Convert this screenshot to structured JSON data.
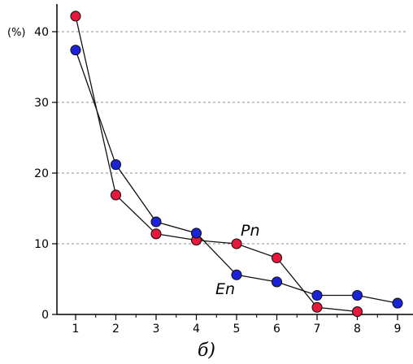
{
  "chart_data": {
    "type": "line",
    "x": [
      1,
      2,
      3,
      4,
      5,
      6,
      7,
      8,
      9
    ],
    "xticks": [
      "1",
      "2",
      "3",
      "4",
      "5",
      "6",
      "7",
      "8",
      "9"
    ],
    "ylim": [
      0,
      42
    ],
    "yticks": [
      0,
      10,
      20,
      30,
      40
    ],
    "y_unit_label": "(%)",
    "grid": "horizontal-dashed",
    "series": [
      {
        "name": "Pn",
        "color": "#e8173c",
        "x": [
          1,
          2,
          3,
          4,
          5,
          6,
          7,
          8
        ],
        "values": [
          42.2,
          16.9,
          11.4,
          10.5,
          10.0,
          8.0,
          1.0,
          0.4
        ]
      },
      {
        "name": "En",
        "color": "#1a24d6",
        "x": [
          1,
          2,
          3,
          4,
          5,
          6,
          7,
          8,
          9
        ],
        "values": [
          37.4,
          21.2,
          13.1,
          11.5,
          5.6,
          4.6,
          2.7,
          2.7,
          1.6
        ]
      }
    ]
  },
  "caption": "б)"
}
